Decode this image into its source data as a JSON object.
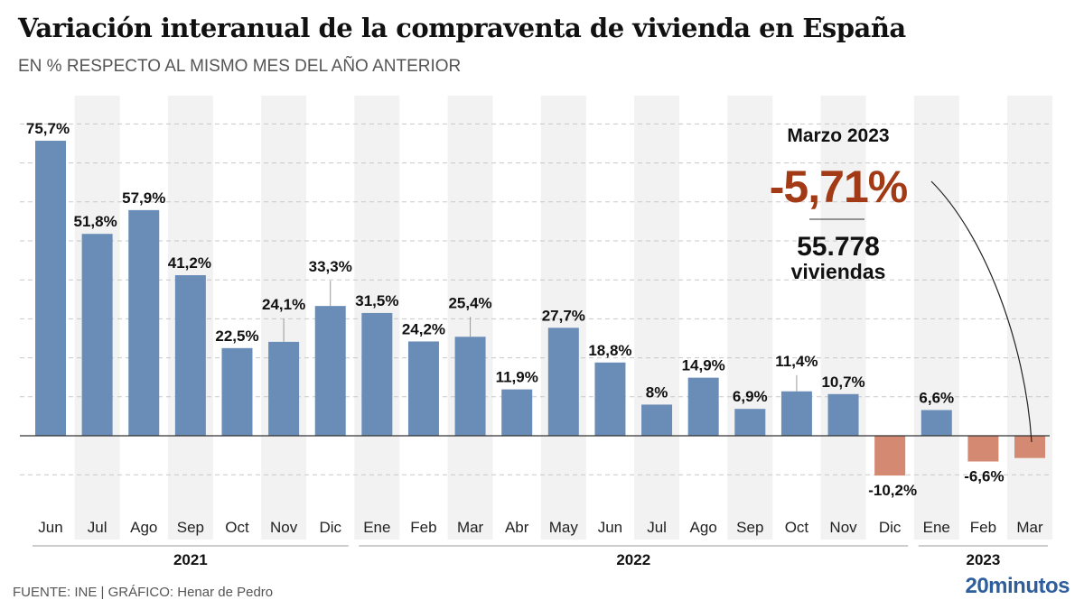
{
  "header": {
    "title": "Variación interanual de la compraventa de vivienda en España",
    "subtitle": "EN % RESPECTO AL MISMO MES DEL AÑO ANTERIOR"
  },
  "footer": {
    "source": "FUENTE: INE  |  GRÁFICO: Henar de Pedro",
    "brand": "20minutos"
  },
  "callout": {
    "title": "Marzo 2023",
    "value": "-5,71%",
    "count": "55.778",
    "unit": "viviendas"
  },
  "colors": {
    "positive": "#6a8db7",
    "negative": "#d48a72",
    "highlight": "#a33a16",
    "brand": "#2e5e9c"
  },
  "chart_data": {
    "type": "bar",
    "title": "Variación interanual de la compraventa de vivienda en España",
    "subtitle": "EN % RESPECTO AL MISMO MES DEL AÑO ANTERIOR",
    "xlabel": "",
    "ylabel": "%",
    "ylim": [
      -10,
      75
    ],
    "grid": true,
    "categories": [
      "Jun",
      "Jul",
      "Ago",
      "Sep",
      "Oct",
      "Nov",
      "Dic",
      "Ene",
      "Feb",
      "Mar",
      "Abr",
      "May",
      "Jun",
      "Jul",
      "Ago",
      "Sep",
      "Oct",
      "Nov",
      "Dic",
      "Ene",
      "Feb",
      "Mar"
    ],
    "values": [
      75.7,
      51.8,
      57.9,
      41.2,
      22.5,
      24.1,
      33.3,
      31.5,
      24.2,
      25.4,
      11.9,
      27.7,
      18.8,
      8,
      14.9,
      6.9,
      11.4,
      10.7,
      -10.2,
      6.6,
      -6.6,
      -5.71
    ],
    "labels": [
      "75,7%",
      "51,8%",
      "57,9%",
      "41,2%",
      "22,5%",
      "24,1%",
      "33,3%",
      "31,5%",
      "24,2%",
      "25,4%",
      "11,9%",
      "27,7%",
      "18,8%",
      "8%",
      "14,9%",
      "6,9%",
      "11,4%",
      "10,7%",
      "-10,2%",
      "6,6%",
      "-6,6%",
      ""
    ],
    "years": [
      {
        "label": "2021",
        "start": 0,
        "end": 6
      },
      {
        "label": "2022",
        "start": 7,
        "end": 18
      },
      {
        "label": "2023",
        "start": 19,
        "end": 21
      }
    ]
  }
}
